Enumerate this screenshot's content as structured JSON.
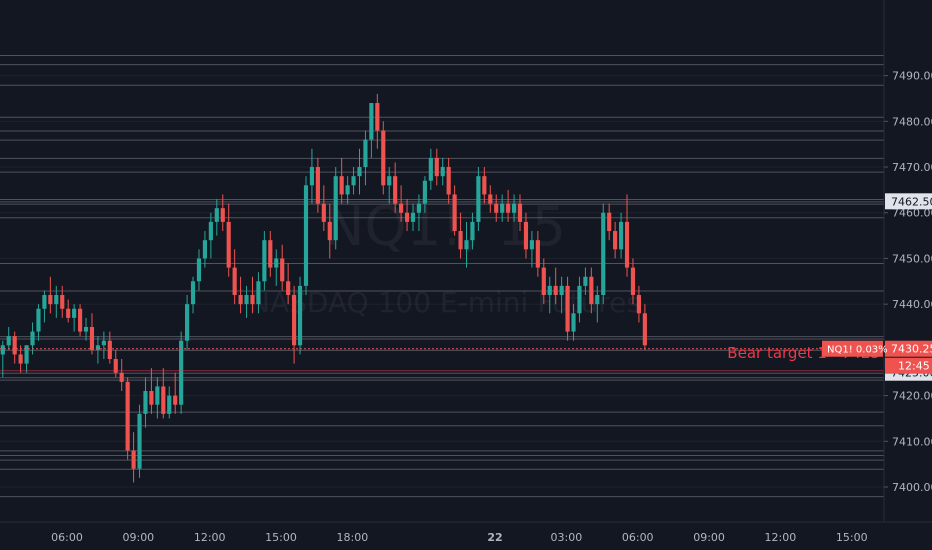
{
  "chart_data": {
    "type": "candlestick",
    "symbol_watermark": "NQ1!, 15",
    "subtitle_watermark": "NASDAQ 100 E-mini Futures",
    "y_axis": {
      "ticks": [
        7400,
        7410,
        7420,
        7430,
        7440,
        7450,
        7460,
        7470,
        7480,
        7490
      ],
      "tick_labels": [
        "7400.00",
        "7410.00",
        "7420.00",
        "7430.00",
        "7440.00",
        "7450.00",
        "7460.00",
        "7470.00",
        "7480.00",
        "7490.00"
      ],
      "ylim": [
        7397,
        7493
      ]
    },
    "x_axis": {
      "labels": [
        {
          "text": "06:00",
          "t": 6
        },
        {
          "text": "09:00",
          "t": 9
        },
        {
          "text": "12:00",
          "t": 12
        },
        {
          "text": "15:00",
          "t": 15
        },
        {
          "text": "18:00",
          "t": 18
        },
        {
          "text": "22",
          "t": 24,
          "bold": true
        },
        {
          "text": "03:00",
          "t": 27
        },
        {
          "text": "06:00",
          "t": 30
        },
        {
          "text": "09:00",
          "t": 33
        },
        {
          "text": "12:00",
          "t": 36
        },
        {
          "text": "15:00",
          "t": 39
        }
      ],
      "hours_per_candle": 0.25
    },
    "horizontal_lines": [
      7494.5,
      7492.5,
      7488,
      7481,
      7478,
      7476,
      7472,
      7469,
      7463,
      7462.5,
      7462,
      7459,
      7449,
      7443,
      7433,
      7432.5,
      7430,
      7425,
      7424,
      7423.5,
      7416.5,
      7413.5,
      7408,
      7407,
      7406,
      7404,
      7398
    ],
    "price_marker": {
      "value": 7430.25,
      "label": "7430.25",
      "legend": "NQ1!  0.03%",
      "countdown": "12:45",
      "color": "#ef5350"
    },
    "level_markers": [
      {
        "value": 7462.5,
        "label": "7462.50"
      },
      {
        "value": 7425,
        "label": "7425.00"
      }
    ],
    "annotation": {
      "text": "Bear target 1 - 7425",
      "value": 7425,
      "color": "#f23645"
    },
    "colors": {
      "up": "#26a69a",
      "down": "#ef5350",
      "grid": "#2a2e39",
      "line": "#4a4e5a",
      "bg": "#131722",
      "text": "#b2b5be"
    },
    "candles": [
      [
        7431,
        7433,
        7424,
        7429
      ],
      [
        7429,
        7432,
        7424,
        7431
      ],
      [
        7431,
        7435,
        7430,
        7433
      ],
      [
        7433,
        7434,
        7427,
        7429
      ],
      [
        7429,
        7431,
        7425,
        7427
      ],
      [
        7427,
        7431,
        7425,
        7431
      ],
      [
        7431,
        7436,
        7429,
        7434
      ],
      [
        7434,
        7440,
        7432,
        7439
      ],
      [
        7439,
        7443,
        7436,
        7442
      ],
      [
        7442,
        7446,
        7438,
        7440
      ],
      [
        7440,
        7444,
        7437,
        7442
      ],
      [
        7442,
        7444,
        7437,
        7439
      ],
      [
        7439,
        7441,
        7436,
        7437
      ],
      [
        7437,
        7440,
        7434,
        7439
      ],
      [
        7439,
        7440,
        7433,
        7434
      ],
      [
        7434,
        7437,
        7432,
        7435
      ],
      [
        7435,
        7438,
        7429,
        7430
      ],
      [
        7430,
        7433,
        7427,
        7431
      ],
      [
        7431,
        7434,
        7428,
        7432
      ],
      [
        7432,
        7434,
        7427,
        7428
      ],
      [
        7428,
        7430,
        7424,
        7425
      ],
      [
        7425,
        7428,
        7421,
        7423
      ],
      [
        7423,
        7424,
        7406,
        7408
      ],
      [
        7408,
        7412,
        7401,
        7404
      ],
      [
        7404,
        7418,
        7402,
        7416
      ],
      [
        7416,
        7424,
        7413,
        7421
      ],
      [
        7421,
        7426,
        7416,
        7418
      ],
      [
        7418,
        7424,
        7415,
        7422
      ],
      [
        7422,
        7426,
        7415,
        7416
      ],
      [
        7416,
        7422,
        7415,
        7420
      ],
      [
        7420,
        7425,
        7416,
        7418
      ],
      [
        7418,
        7434,
        7416,
        7432
      ],
      [
        7432,
        7442,
        7430,
        7440
      ],
      [
        7440,
        7446,
        7438,
        7445
      ],
      [
        7445,
        7452,
        7443,
        7450
      ],
      [
        7450,
        7456,
        7448,
        7454
      ],
      [
        7454,
        7460,
        7450,
        7458
      ],
      [
        7458,
        7463,
        7455,
        7461
      ],
      [
        7461,
        7464,
        7456,
        7458
      ],
      [
        7458,
        7462,
        7446,
        7448
      ],
      [
        7448,
        7452,
        7440,
        7442
      ],
      [
        7442,
        7446,
        7438,
        7440
      ],
      [
        7440,
        7444,
        7437,
        7442
      ],
      [
        7442,
        7446,
        7438,
        7440
      ],
      [
        7440,
        7447,
        7438,
        7445
      ],
      [
        7445,
        7456,
        7443,
        7454
      ],
      [
        7454,
        7456,
        7446,
        7448
      ],
      [
        7448,
        7452,
        7444,
        7450
      ],
      [
        7450,
        7453,
        7443,
        7445
      ],
      [
        7445,
        7449,
        7440,
        7442
      ],
      [
        7442,
        7444,
        7427,
        7431
      ],
      [
        7431,
        7446,
        7429,
        7444
      ],
      [
        7444,
        7468,
        7442,
        7466
      ],
      [
        7466,
        7474,
        7462,
        7470
      ],
      [
        7470,
        7472,
        7460,
        7462
      ],
      [
        7462,
        7466,
        7456,
        7458
      ],
      [
        7458,
        7462,
        7450,
        7454
      ],
      [
        7454,
        7470,
        7452,
        7468
      ],
      [
        7468,
        7472,
        7462,
        7464
      ],
      [
        7464,
        7468,
        7462,
        7466
      ],
      [
        7466,
        7470,
        7464,
        7468
      ],
      [
        7468,
        7474,
        7464,
        7470
      ],
      [
        7470,
        7478,
        7466,
        7476
      ],
      [
        7476,
        7484,
        7472,
        7484
      ],
      [
        7484,
        7486,
        7474,
        7478
      ],
      [
        7478,
        7480,
        7464,
        7466
      ],
      [
        7466,
        7470,
        7462,
        7468
      ],
      [
        7468,
        7471,
        7460,
        7462
      ],
      [
        7462,
        7466,
        7458,
        7460
      ],
      [
        7460,
        7463,
        7456,
        7458
      ],
      [
        7458,
        7462,
        7456,
        7460
      ],
      [
        7460,
        7464,
        7456,
        7462
      ],
      [
        7462,
        7468,
        7460,
        7467
      ],
      [
        7467,
        7474,
        7465,
        7472
      ],
      [
        7472,
        7474,
        7466,
        7468
      ],
      [
        7468,
        7472,
        7466,
        7470
      ],
      [
        7470,
        7472,
        7462,
        7464
      ],
      [
        7464,
        7466,
        7455,
        7456
      ],
      [
        7456,
        7460,
        7450,
        7452
      ],
      [
        7452,
        7458,
        7448,
        7454
      ],
      [
        7454,
        7460,
        7452,
        7458
      ],
      [
        7458,
        7470,
        7456,
        7468
      ],
      [
        7468,
        7470,
        7462,
        7464
      ],
      [
        7464,
        7466,
        7460,
        7462
      ],
      [
        7462,
        7464,
        7458,
        7460
      ],
      [
        7460,
        7464,
        7458,
        7462
      ],
      [
        7462,
        7465,
        7458,
        7460
      ],
      [
        7460,
        7464,
        7458,
        7462
      ],
      [
        7462,
        7464,
        7456,
        7458
      ],
      [
        7458,
        7460,
        7450,
        7452
      ],
      [
        7452,
        7456,
        7448,
        7454
      ],
      [
        7454,
        7456,
        7446,
        7448
      ],
      [
        7448,
        7450,
        7440,
        7442
      ],
      [
        7442,
        7446,
        7438,
        7444
      ],
      [
        7444,
        7448,
        7440,
        7442
      ],
      [
        7442,
        7446,
        7438,
        7444
      ],
      [
        7444,
        7446,
        7432,
        7434
      ],
      [
        7434,
        7440,
        7432,
        7438
      ],
      [
        7438,
        7446,
        7436,
        7444
      ],
      [
        7444,
        7448,
        7442,
        7446
      ],
      [
        7446,
        7448,
        7438,
        7440
      ],
      [
        7440,
        7444,
        7436,
        7442
      ],
      [
        7442,
        7462,
        7440,
        7460
      ],
      [
        7460,
        7462,
        7454,
        7456
      ],
      [
        7456,
        7458,
        7450,
        7452
      ],
      [
        7452,
        7460,
        7450,
        7458
      ],
      [
        7458,
        7464,
        7446,
        7448
      ],
      [
        7448,
        7450,
        7440,
        7442
      ],
      [
        7442,
        7444,
        7436,
        7438
      ],
      [
        7438,
        7440,
        7430,
        7431
      ]
    ]
  }
}
